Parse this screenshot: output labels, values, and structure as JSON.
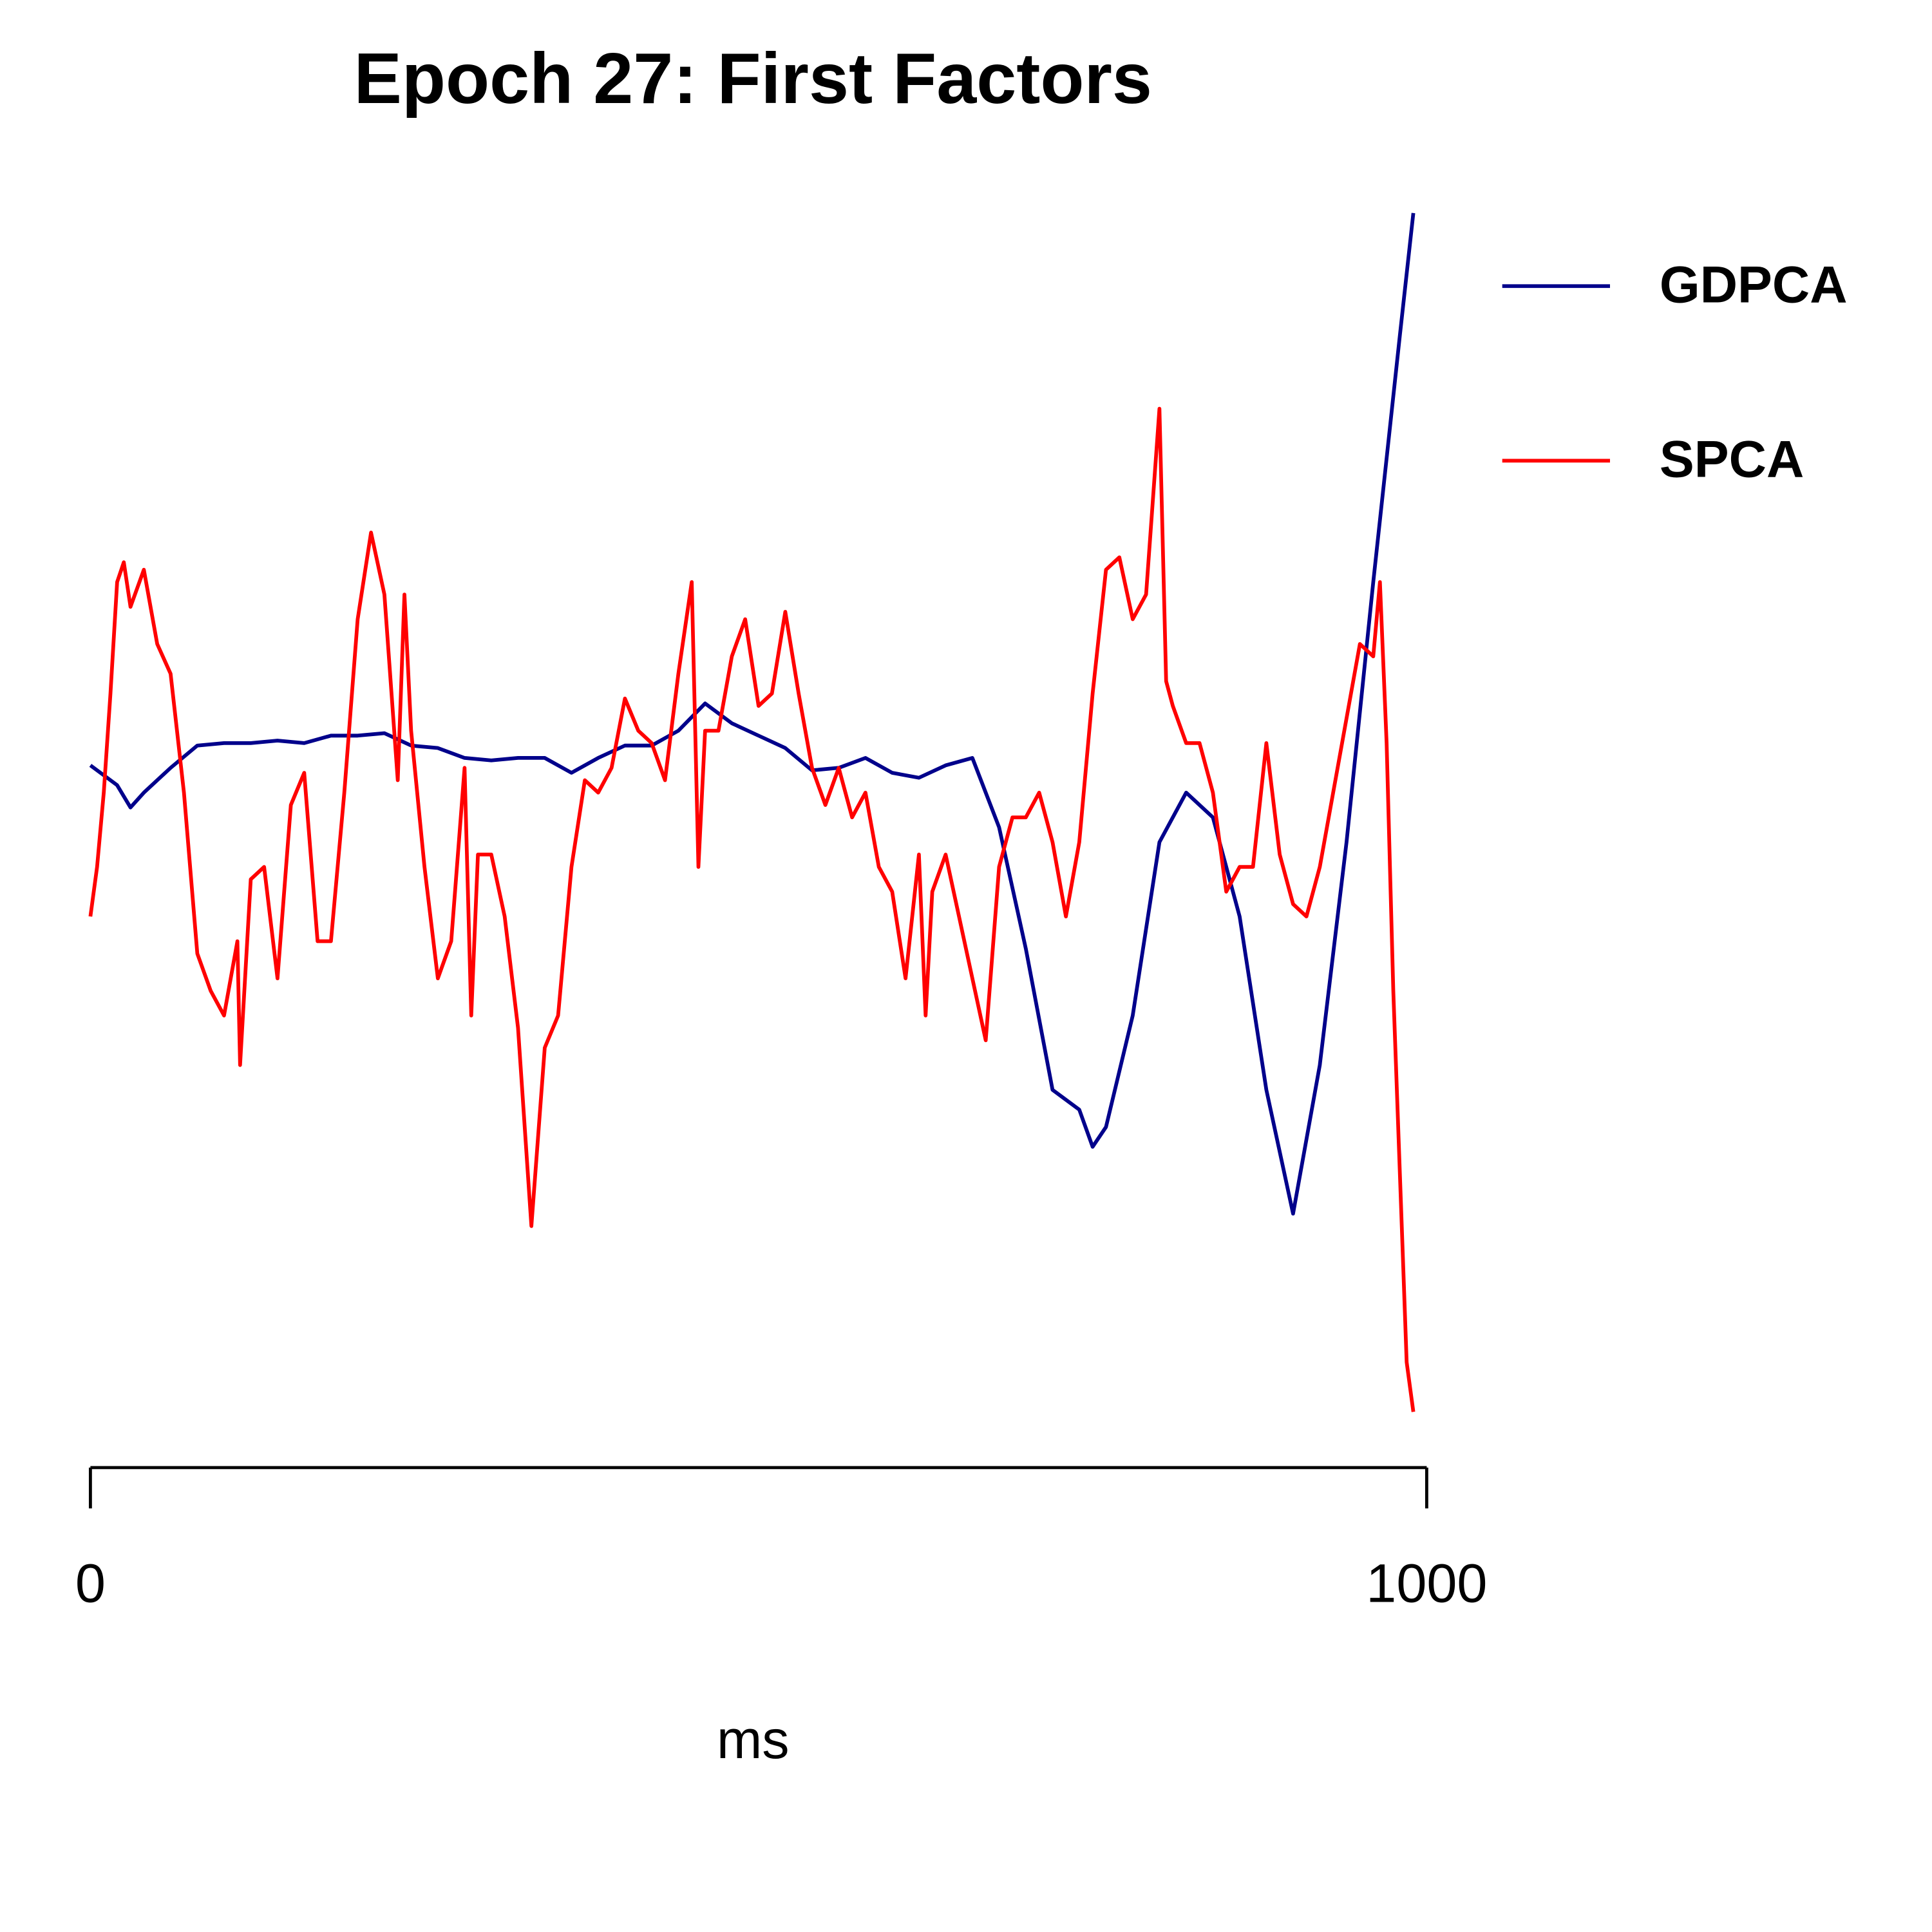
{
  "chart_data": {
    "type": "line",
    "title": "Epoch 27: First Factors",
    "xlabel": "ms",
    "xlim": [
      0,
      1000
    ],
    "xticks": [
      0,
      1000
    ],
    "ylim": [
      -2.6,
      2.6
    ],
    "legend": "right",
    "series": [
      {
        "name": "GDPCA",
        "color": "#00008b",
        "x": [
          0,
          20,
          30,
          40,
          60,
          80,
          100,
          120,
          140,
          160,
          180,
          200,
          220,
          240,
          260,
          280,
          300,
          320,
          340,
          360,
          380,
          400,
          420,
          440,
          460,
          480,
          500,
          520,
          540,
          560,
          580,
          600,
          620,
          640,
          660,
          680,
          700,
          720,
          740,
          750,
          760,
          780,
          800,
          820,
          840,
          860,
          880,
          900,
          920,
          940,
          960,
          980,
          990
        ],
        "values": [
          0.21,
          0.13,
          0.04,
          0.1,
          0.2,
          0.29,
          0.3,
          0.3,
          0.31,
          0.3,
          0.33,
          0.33,
          0.34,
          0.29,
          0.28,
          0.24,
          0.23,
          0.24,
          0.24,
          0.18,
          0.24,
          0.29,
          0.29,
          0.35,
          0.46,
          0.38,
          0.33,
          0.28,
          0.19,
          0.2,
          0.24,
          0.18,
          0.16,
          0.21,
          0.24,
          -0.04,
          -0.53,
          -1.1,
          -1.18,
          -1.33,
          -1.25,
          -0.8,
          -0.1,
          0.1,
          0,
          -0.4,
          -1.1,
          -1.6,
          -1.0,
          -0.1,
          0.95,
          1.95,
          2.44
        ]
      },
      {
        "name": "SPCA",
        "color": "#ff0000",
        "x": [
          0,
          5,
          10,
          15,
          20,
          25,
          30,
          40,
          50,
          60,
          70,
          80,
          90,
          100,
          110,
          112,
          120,
          130,
          140,
          150,
          160,
          170,
          180,
          190,
          200,
          210,
          220,
          230,
          235,
          240,
          250,
          260,
          270,
          280,
          285,
          290,
          300,
          310,
          320,
          330,
          340,
          350,
          360,
          370,
          380,
          390,
          400,
          410,
          420,
          430,
          440,
          450,
          455,
          460,
          470,
          480,
          490,
          500,
          510,
          520,
          530,
          540,
          550,
          560,
          570,
          580,
          590,
          600,
          610,
          620,
          625,
          630,
          640,
          650,
          660,
          670,
          680,
          690,
          700,
          710,
          720,
          730,
          740,
          750,
          760,
          770,
          780,
          790,
          800,
          805,
          810,
          820,
          830,
          840,
          850,
          860,
          870,
          880,
          890,
          900,
          910,
          920,
          930,
          940,
          950,
          960,
          965,
          970,
          975,
          980,
          985,
          990
        ],
        "values": [
          -0.4,
          -0.2,
          0.1,
          0.5,
          0.95,
          1.03,
          0.85,
          1.0,
          0.7,
          0.58,
          0.1,
          -0.55,
          -0.7,
          -0.8,
          -0.5,
          -1.0,
          -0.25,
          -0.2,
          -0.65,
          0.05,
          0.18,
          -0.5,
          -0.5,
          0.1,
          0.8,
          1.15,
          0.9,
          0.15,
          0.9,
          0.35,
          -0.2,
          -0.65,
          -0.5,
          0.2,
          -0.8,
          -0.15,
          -0.15,
          -0.4,
          -0.85,
          -1.65,
          -0.93,
          -0.8,
          -0.2,
          0.15,
          0.1,
          0.2,
          0.48,
          0.35,
          0.3,
          0.15,
          0.58,
          0.95,
          -0.2,
          0.35,
          0.35,
          0.65,
          0.8,
          0.45,
          0.5,
          0.83,
          0.5,
          0.2,
          0.05,
          0.2,
          0,
          0.1,
          -0.2,
          -0.3,
          -0.65,
          -0.15,
          -0.8,
          -0.3,
          -0.15,
          -0.4,
          -0.65,
          -0.9,
          -0.2,
          0,
          0,
          0.1,
          -0.1,
          -0.4,
          -0.1,
          0.5,
          1.0,
          1.05,
          0.8,
          0.9,
          1.65,
          0.55,
          0.45,
          0.3,
          0.3,
          0.1,
          -0.3,
          -0.2,
          -0.2,
          0.3,
          -0.15,
          -0.35,
          -0.4,
          -0.2,
          0.1,
          0.4,
          0.7,
          0.65,
          0.95,
          0.3,
          -0.7,
          -1.45,
          -2.2,
          -2.4
        ]
      }
    ]
  }
}
